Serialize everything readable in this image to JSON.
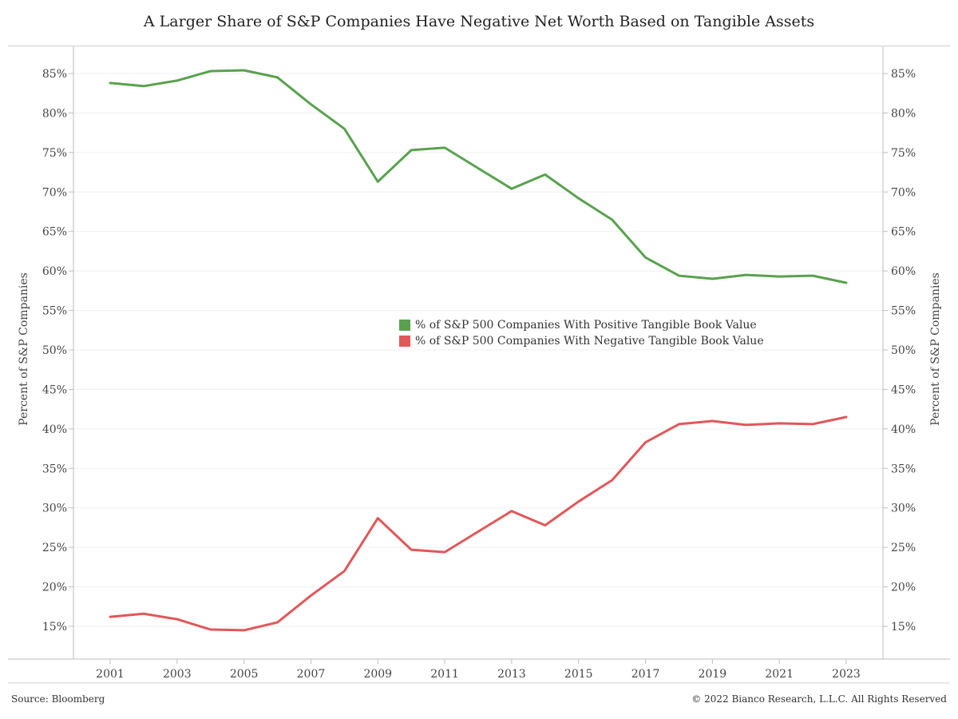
{
  "chart_data": {
    "type": "line",
    "title": "A Larger Share of S&P Companies Have Negative Net Worth Based on Tangible Assets",
    "ylabel_left": "Percent of S&P Companies",
    "ylabel_right": "Percent of S&P Companies",
    "x": [
      2001,
      2002,
      2003,
      2004,
      2005,
      2006,
      2007,
      2008,
      2009,
      2010,
      2011,
      2012,
      2013,
      2014,
      2015,
      2016,
      2017,
      2018,
      2019,
      2020,
      2021,
      2022,
      2023
    ],
    "xticks": [
      "2001",
      "2003",
      "2005",
      "2007",
      "2009",
      "2011",
      "2013",
      "2015",
      "2017",
      "2019",
      "2021",
      "2023"
    ],
    "yticks": [
      "15%",
      "20%",
      "25%",
      "30%",
      "35%",
      "40%",
      "45%",
      "50%",
      "55%",
      "60%",
      "65%",
      "70%",
      "75%",
      "80%",
      "85%"
    ],
    "ylim": [
      11,
      88
    ],
    "series": [
      {
        "name": "% of S&P 500 Companies With Positive Tangible Book Value",
        "color": "#59a14f",
        "values": [
          83.8,
          83.4,
          84.1,
          85.3,
          85.4,
          84.5,
          81.1,
          78.0,
          71.3,
          75.3,
          75.6,
          73.0,
          70.4,
          72.2,
          69.2,
          66.5,
          61.7,
          59.4,
          59.0,
          59.5,
          59.3,
          59.4,
          58.5
        ]
      },
      {
        "name": "% of S&P 500 Companies With Negative Tangible Book Value",
        "color": "#e15759",
        "values": [
          16.2,
          16.6,
          15.9,
          14.6,
          14.5,
          15.5,
          18.9,
          22.0,
          28.7,
          24.7,
          24.4,
          27.0,
          29.6,
          27.8,
          30.8,
          33.5,
          38.3,
          40.6,
          41.0,
          40.5,
          40.7,
          40.6,
          41.5
        ]
      }
    ],
    "grid": true,
    "legend_position": "center"
  },
  "footer": {
    "source": "Source: Bloomberg",
    "copyright": "© 2022 Bianco Research, L.L.C. All Rights Reserved"
  }
}
